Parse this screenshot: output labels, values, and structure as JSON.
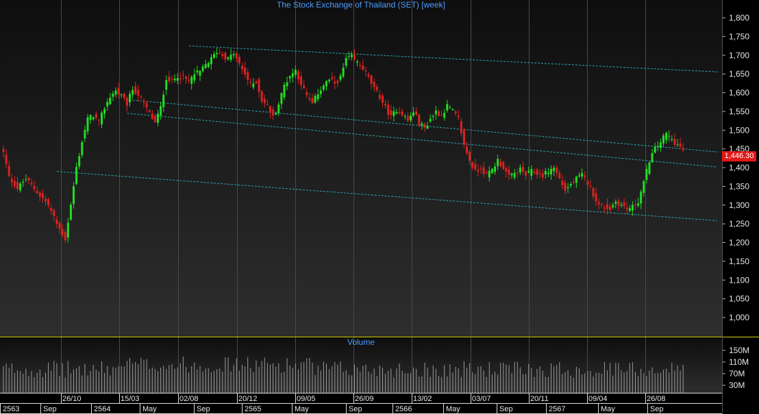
{
  "window": {
    "title": "The Stock Exchange of Thailand (SET) [week]",
    "volume_title": "Volume",
    "last_price_label": "1,446.30"
  },
  "colors": {
    "background": "#000000",
    "panel_gradient_top": "#0e0e0e",
    "panel_gradient_bottom": "#2e2e2e",
    "up_candle": "#22dd22",
    "down_candle": "#dd2222",
    "trendline": "#2aa6b0",
    "axis_text": "#e8e8e8",
    "title_text": "#4f9bff",
    "separator": "#d7d700",
    "volume_bar": "#9a9a9a"
  },
  "axes": {
    "price_ticks": [
      "1,800",
      "1,750",
      "1,700",
      "1,650",
      "1,600",
      "1,550",
      "1,500",
      "1,450",
      "1,400",
      "1,350",
      "1,300",
      "1,250",
      "1,200",
      "1,150",
      "1,100",
      "1,050",
      "1,000"
    ],
    "volume_ticks": [
      "150M",
      "110M",
      "70M",
      "30M"
    ],
    "date_labels": [
      "26/10",
      "15/03",
      "02/08",
      "20/12",
      "09/05",
      "26/09",
      "13/02",
      "03/07",
      "20/11",
      "09/04",
      "26/08"
    ],
    "period_labels": [
      "2563",
      "Sep",
      "2564",
      "May",
      "Sep",
      "2565",
      "May",
      "Sep",
      "2566",
      "May",
      "Sep",
      "2567",
      "May",
      "Sep"
    ]
  },
  "chart_data": {
    "type": "candlestick",
    "title": "The Stock Exchange of Thailand (SET) [week]",
    "interval": "week",
    "ylim": [
      970,
      1820
    ],
    "last_price": 1446.3,
    "close_anchors": [
      [
        0,
        1440
      ],
      [
        2,
        1375
      ],
      [
        5,
        1345
      ],
      [
        8,
        1370
      ],
      [
        12,
        1335
      ],
      [
        16,
        1300
      ],
      [
        19,
        1250
      ],
      [
        22,
        1210
      ],
      [
        24,
        1300
      ],
      [
        26,
        1400
      ],
      [
        28,
        1470
      ],
      [
        30,
        1530
      ],
      [
        32,
        1540
      ],
      [
        34,
        1520
      ],
      [
        36,
        1560
      ],
      [
        38,
        1590
      ],
      [
        40,
        1605
      ],
      [
        42,
        1590
      ],
      [
        44,
        1570
      ],
      [
        46,
        1610
      ],
      [
        48,
        1595
      ],
      [
        50,
        1570
      ],
      [
        52,
        1545
      ],
      [
        54,
        1520
      ],
      [
        56,
        1560
      ],
      [
        58,
        1640
      ],
      [
        60,
        1630
      ],
      [
        62,
        1645
      ],
      [
        64,
        1640
      ],
      [
        66,
        1630
      ],
      [
        68,
        1650
      ],
      [
        70,
        1655
      ],
      [
        72,
        1675
      ],
      [
        74,
        1690
      ],
      [
        76,
        1710
      ],
      [
        78,
        1700
      ],
      [
        80,
        1690
      ],
      [
        82,
        1705
      ],
      [
        84,
        1675
      ],
      [
        86,
        1650
      ],
      [
        88,
        1620
      ],
      [
        90,
        1630
      ],
      [
        92,
        1580
      ],
      [
        94,
        1565
      ],
      [
        96,
        1535
      ],
      [
        98,
        1570
      ],
      [
        100,
        1620
      ],
      [
        102,
        1645
      ],
      [
        104,
        1660
      ],
      [
        106,
        1625
      ],
      [
        108,
        1590
      ],
      [
        110,
        1570
      ],
      [
        112,
        1600
      ],
      [
        114,
        1620
      ],
      [
        116,
        1635
      ],
      [
        118,
        1625
      ],
      [
        120,
        1640
      ],
      [
        122,
        1690
      ],
      [
        124,
        1695
      ],
      [
        126,
        1680
      ],
      [
        128,
        1665
      ],
      [
        130,
        1640
      ],
      [
        132,
        1610
      ],
      [
        134,
        1590
      ],
      [
        136,
        1560
      ],
      [
        138,
        1535
      ],
      [
        140,
        1555
      ],
      [
        142,
        1545
      ],
      [
        144,
        1525
      ],
      [
        146,
        1550
      ],
      [
        148,
        1520
      ],
      [
        150,
        1505
      ],
      [
        152,
        1530
      ],
      [
        154,
        1550
      ],
      [
        156,
        1540
      ],
      [
        158,
        1565
      ],
      [
        160,
        1550
      ],
      [
        162,
        1530
      ],
      [
        164,
        1460
      ],
      [
        166,
        1420
      ],
      [
        168,
        1390
      ],
      [
        170,
        1400
      ],
      [
        172,
        1380
      ],
      [
        174,
        1395
      ],
      [
        176,
        1420
      ],
      [
        178,
        1400
      ],
      [
        180,
        1375
      ],
      [
        182,
        1385
      ],
      [
        184,
        1395
      ],
      [
        186,
        1380
      ],
      [
        188,
        1390
      ],
      [
        190,
        1385
      ],
      [
        192,
        1380
      ],
      [
        194,
        1390
      ],
      [
        196,
        1400
      ],
      [
        198,
        1370
      ],
      [
        200,
        1340
      ],
      [
        202,
        1355
      ],
      [
        204,
        1370
      ],
      [
        206,
        1380
      ],
      [
        208,
        1360
      ],
      [
        210,
        1330
      ],
      [
        212,
        1300
      ],
      [
        214,
        1295
      ],
      [
        216,
        1290
      ],
      [
        218,
        1310
      ],
      [
        220,
        1300
      ],
      [
        222,
        1290
      ],
      [
        224,
        1295
      ],
      [
        226,
        1310
      ],
      [
        228,
        1360
      ],
      [
        230,
        1420
      ],
      [
        232,
        1450
      ],
      [
        234,
        1470
      ],
      [
        236,
        1490
      ],
      [
        238,
        1475
      ],
      [
        240,
        1460
      ],
      [
        242,
        1446.3
      ]
    ],
    "trendlines": [
      {
        "from": {
          "week": 66,
          "price": 1725
        },
        "to": {
          "week": 242,
          "price": 1660
        }
      },
      {
        "from": {
          "week": 46,
          "price": 1580
        },
        "to": {
          "week": 242,
          "price": 1450
        }
      },
      {
        "from": {
          "week": 44,
          "price": 1545
        },
        "to": {
          "week": 242,
          "price": 1410
        }
      },
      {
        "from": {
          "week": 19,
          "price": 1390
        },
        "to": {
          "week": 242,
          "price": 1265
        }
      }
    ],
    "volume_ylim": [
      0,
      180
    ],
    "volume_unit": "M"
  }
}
